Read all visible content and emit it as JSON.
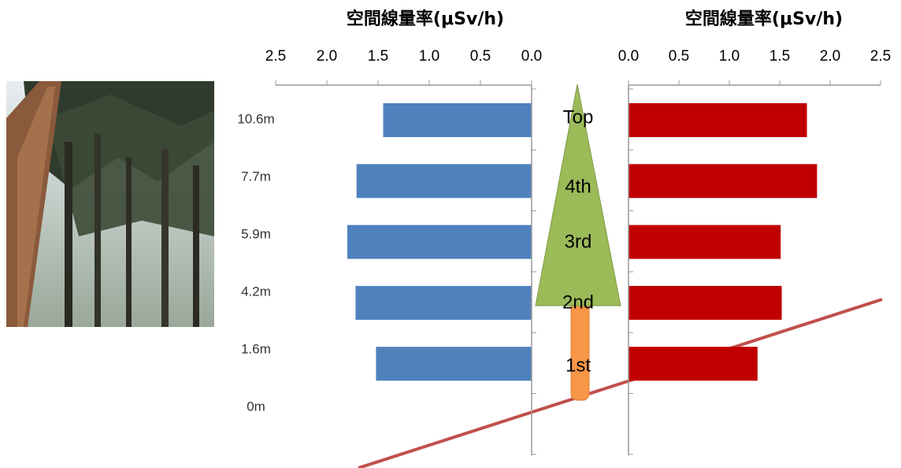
{
  "chart_data": [
    {
      "type": "bar",
      "orientation": "horizontal",
      "title": "空間線量率(μSv/h)",
      "categories": [
        "10.6m",
        "7.7m",
        "5.9m",
        "4.2m",
        "1.6m",
        "0m"
      ],
      "values": [
        1.45,
        1.71,
        1.8,
        1.72,
        1.52,
        null
      ],
      "color": "#4f81bd",
      "xlim": [
        2.5,
        0
      ],
      "xticks": [
        2.5,
        {
          "value": 2,
          "label": "2.0"
        },
        1.5,
        {
          "value": 1,
          "label": "1.0"
        },
        0.5,
        {
          "value": 0,
          "label": "0.0"
        }
      ]
    },
    {
      "type": "bar",
      "orientation": "horizontal",
      "title": "空間線量率(μSv/h)",
      "values": [
        1.77,
        1.87,
        1.51,
        1.52,
        1.28,
        null
      ],
      "color": "#c00000",
      "xlim": [
        0,
        2.5
      ],
      "xticks": [
        {
          "value": 0,
          "label": "0.0"
        },
        0.5,
        {
          "value": 1,
          "label": "1.0"
        },
        1.5,
        {
          "value": 2,
          "label": "2.0"
        },
        2.5
      ]
    }
  ],
  "tree": {
    "labels": [
      "Top",
      "4th",
      "3rd",
      "2nd",
      "1st"
    ]
  }
}
